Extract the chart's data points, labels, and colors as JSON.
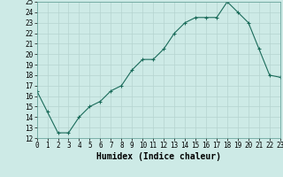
{
  "x": [
    0,
    1,
    2,
    3,
    4,
    5,
    6,
    7,
    8,
    9,
    10,
    11,
    12,
    13,
    14,
    15,
    16,
    17,
    18,
    19,
    20,
    21,
    22,
    23
  ],
  "y": [
    16.5,
    14.5,
    12.5,
    12.5,
    14.0,
    15.0,
    15.5,
    16.5,
    17.0,
    18.5,
    19.5,
    19.5,
    20.5,
    22.0,
    23.0,
    23.5,
    23.5,
    23.5,
    25.0,
    24.0,
    23.0,
    20.5,
    18.0,
    17.8
  ],
  "xlabel": "Humidex (Indice chaleur)",
  "xlim": [
    0,
    23
  ],
  "ylim": [
    12,
    25
  ],
  "yticks": [
    12,
    13,
    14,
    15,
    16,
    17,
    18,
    19,
    20,
    21,
    22,
    23,
    24,
    25
  ],
  "xticks": [
    0,
    1,
    2,
    3,
    4,
    5,
    6,
    7,
    8,
    9,
    10,
    11,
    12,
    13,
    14,
    15,
    16,
    17,
    18,
    19,
    20,
    21,
    22,
    23
  ],
  "line_color": "#1a6b5a",
  "marker": "+",
  "bg_color": "#cdeae6",
  "grid_color": "#b5d4d0",
  "label_fontsize": 7,
  "tick_fontsize": 5.5
}
